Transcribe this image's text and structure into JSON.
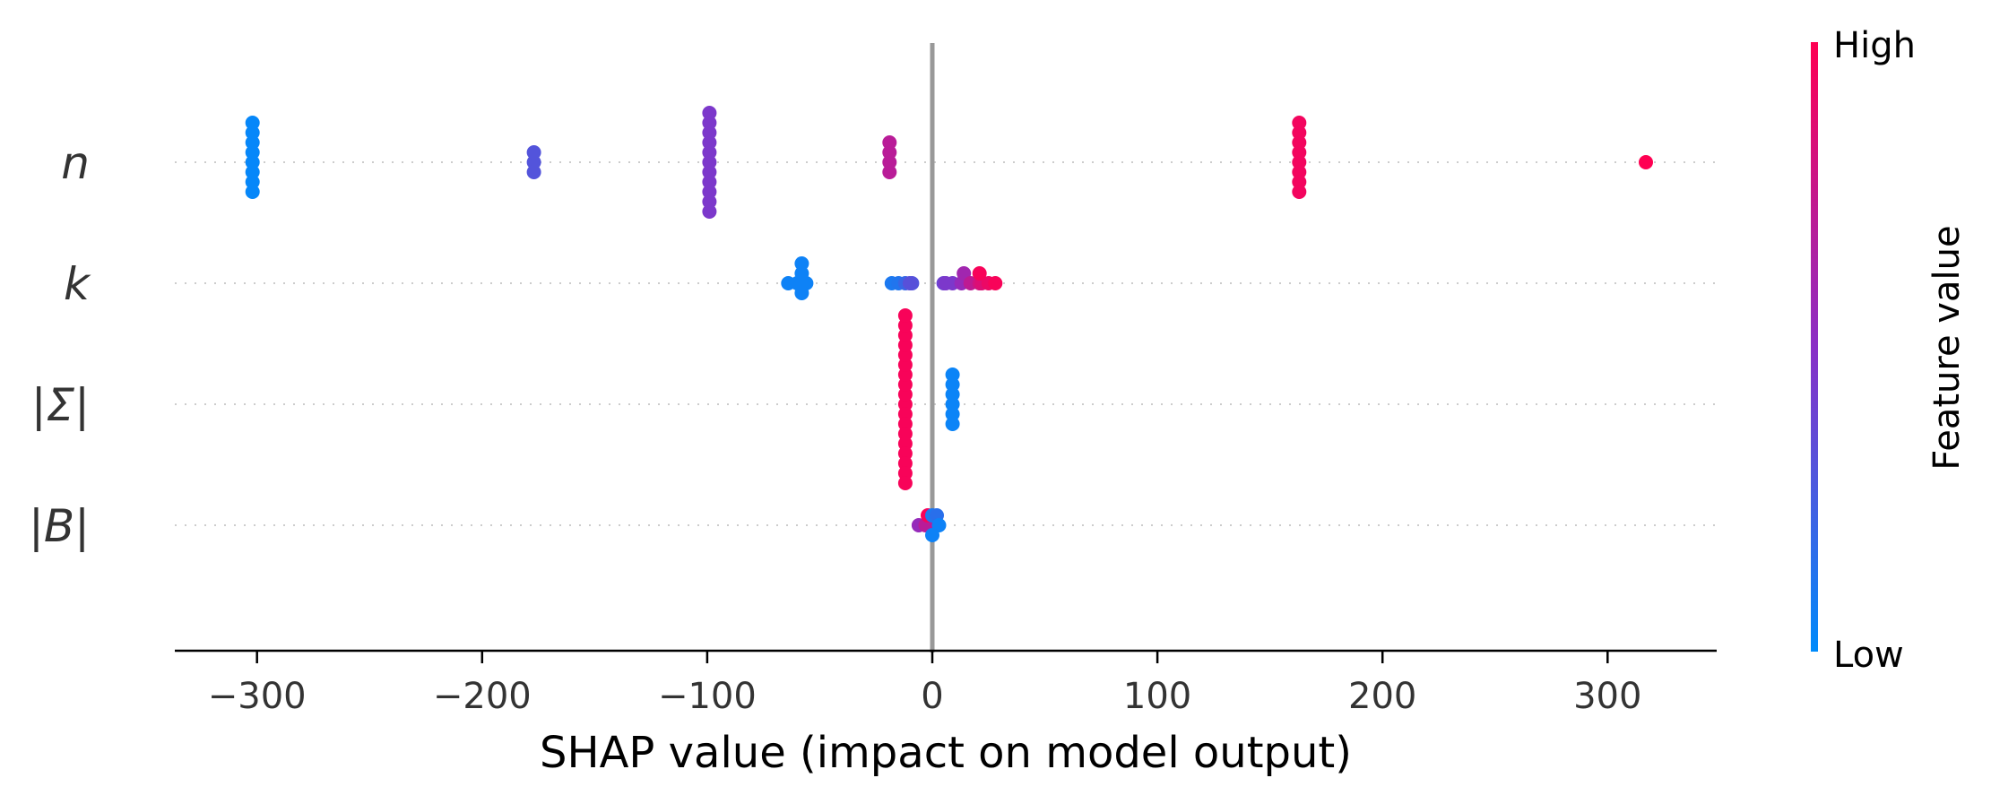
{
  "chart_data": {
    "type": "scatter",
    "subtype": "shap-beeswarm",
    "xlabel": "SHAP value (impact on model output)",
    "xlim": [
      -340,
      350
    ],
    "x_ticks": [
      -300,
      -200,
      -100,
      0,
      100,
      200,
      300
    ],
    "x_tick_labels": [
      "−300",
      "−200",
      "−100",
      "0",
      "100",
      "200",
      "300"
    ],
    "features": [
      {
        "label": "n",
        "points": [
          {
            "shap": -302,
            "value": 0.02
          },
          {
            "shap": -302,
            "value": 0.02
          },
          {
            "shap": -302,
            "value": 0.02
          },
          {
            "shap": -302,
            "value": 0.02
          },
          {
            "shap": -302,
            "value": 0.02
          },
          {
            "shap": -302,
            "value": 0.02
          },
          {
            "shap": -302,
            "value": 0.02
          },
          {
            "shap": -302,
            "value": 0.02
          },
          {
            "shap": -177,
            "value": 0.3
          },
          {
            "shap": -177,
            "value": 0.3
          },
          {
            "shap": -177,
            "value": 0.3
          },
          {
            "shap": -99,
            "value": 0.45
          },
          {
            "shap": -99,
            "value": 0.45
          },
          {
            "shap": -99,
            "value": 0.45
          },
          {
            "shap": -99,
            "value": 0.45
          },
          {
            "shap": -99,
            "value": 0.45
          },
          {
            "shap": -99,
            "value": 0.45
          },
          {
            "shap": -99,
            "value": 0.45
          },
          {
            "shap": -99,
            "value": 0.45
          },
          {
            "shap": -99,
            "value": 0.45
          },
          {
            "shap": -99,
            "value": 0.45
          },
          {
            "shap": -99,
            "value": 0.45
          },
          {
            "shap": -19,
            "value": 0.7
          },
          {
            "shap": -19,
            "value": 0.7
          },
          {
            "shap": -19,
            "value": 0.7
          },
          {
            "shap": -19,
            "value": 0.7
          },
          {
            "shap": 163,
            "value": 0.95
          },
          {
            "shap": 163,
            "value": 0.95
          },
          {
            "shap": 163,
            "value": 0.95
          },
          {
            "shap": 163,
            "value": 0.95
          },
          {
            "shap": 163,
            "value": 0.95
          },
          {
            "shap": 163,
            "value": 0.95
          },
          {
            "shap": 163,
            "value": 0.95
          },
          {
            "shap": 163,
            "value": 0.95
          },
          {
            "shap": 317,
            "value": 1.0
          }
        ]
      },
      {
        "label": "k",
        "points": [
          {
            "shap": -64,
            "value": 0.05
          },
          {
            "shap": -60,
            "value": 0.05
          },
          {
            "shap": -56,
            "value": 0.05
          },
          {
            "shap": -58,
            "value": 0.05
          },
          {
            "shap": -58,
            "value": 0.05
          },
          {
            "shap": -58,
            "value": 0.05
          },
          {
            "shap": -58,
            "value": 0.05
          },
          {
            "shap": -18,
            "value": 0.1
          },
          {
            "shap": -15,
            "value": 0.12
          },
          {
            "shap": -12,
            "value": 0.2
          },
          {
            "shap": -9,
            "value": 0.3
          },
          {
            "shap": -10,
            "value": 0.32
          },
          {
            "shap": 5,
            "value": 0.4
          },
          {
            "shap": 6,
            "value": 0.45
          },
          {
            "shap": 9,
            "value": 0.45
          },
          {
            "shap": 13,
            "value": 0.55
          },
          {
            "shap": 14,
            "value": 0.6
          },
          {
            "shap": 17,
            "value": 0.72
          },
          {
            "shap": 21,
            "value": 0.8
          },
          {
            "shap": 22,
            "value": 0.85
          },
          {
            "shap": 25,
            "value": 0.92
          },
          {
            "shap": 28,
            "value": 0.97
          },
          {
            "shap": 21,
            "value": 0.97
          }
        ]
      },
      {
        "label": "|Σ|",
        "points": [
          {
            "shap": -12,
            "value": 0.97
          },
          {
            "shap": -12,
            "value": 0.97
          },
          {
            "shap": -12,
            "value": 0.97
          },
          {
            "shap": -12,
            "value": 0.97
          },
          {
            "shap": -12,
            "value": 0.97
          },
          {
            "shap": -12,
            "value": 0.97
          },
          {
            "shap": -12,
            "value": 0.97
          },
          {
            "shap": -12,
            "value": 0.97
          },
          {
            "shap": -12,
            "value": 0.97
          },
          {
            "shap": -12,
            "value": 0.97
          },
          {
            "shap": -12,
            "value": 0.97
          },
          {
            "shap": -12,
            "value": 0.97
          },
          {
            "shap": -12,
            "value": 0.97
          },
          {
            "shap": -12,
            "value": 0.97
          },
          {
            "shap": -12,
            "value": 0.97
          },
          {
            "shap": -12,
            "value": 0.97
          },
          {
            "shap": -12,
            "value": 0.97
          },
          {
            "shap": -12,
            "value": 0.97
          },
          {
            "shap": 9,
            "value": 0.04
          },
          {
            "shap": 9,
            "value": 0.04
          },
          {
            "shap": 9,
            "value": 0.04
          },
          {
            "shap": 9,
            "value": 0.04
          },
          {
            "shap": 9,
            "value": 0.04
          },
          {
            "shap": 9,
            "value": 0.04
          }
        ]
      },
      {
        "label": "|B|",
        "points": [
          {
            "shap": 0,
            "value": 0.3
          },
          {
            "shap": 1,
            "value": 0.35
          },
          {
            "shap": -6,
            "value": 0.55
          },
          {
            "shap": -3,
            "value": 0.7
          },
          {
            "shap": -2,
            "value": 0.97
          },
          {
            "shap": 0,
            "value": 0.1
          },
          {
            "shap": 2,
            "value": 0.15
          },
          {
            "shap": 3,
            "value": 0.05
          },
          {
            "shap": 0,
            "value": 0.05
          }
        ]
      }
    ],
    "colorbar": {
      "title": "Feature value",
      "high_label": "High",
      "low_label": "Low",
      "low_color": "#008bfb",
      "mid_color": "#8a2fc6",
      "high_color": "#ff0052"
    },
    "zero_line_color": "#999999"
  }
}
